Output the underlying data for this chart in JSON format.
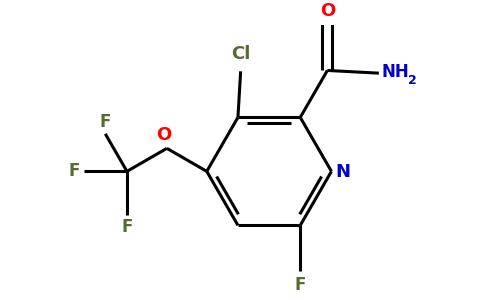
{
  "background_color": "#ffffff",
  "atom_colors": {
    "C": "#000000",
    "N": "#0000cd",
    "O": "#ff0000",
    "F": "#556b2f",
    "Cl": "#556b2f",
    "H": "#000000"
  },
  "bond_color": "#000000",
  "bond_width": 2.2,
  "figsize": [
    4.84,
    3.0
  ],
  "dpi": 100
}
